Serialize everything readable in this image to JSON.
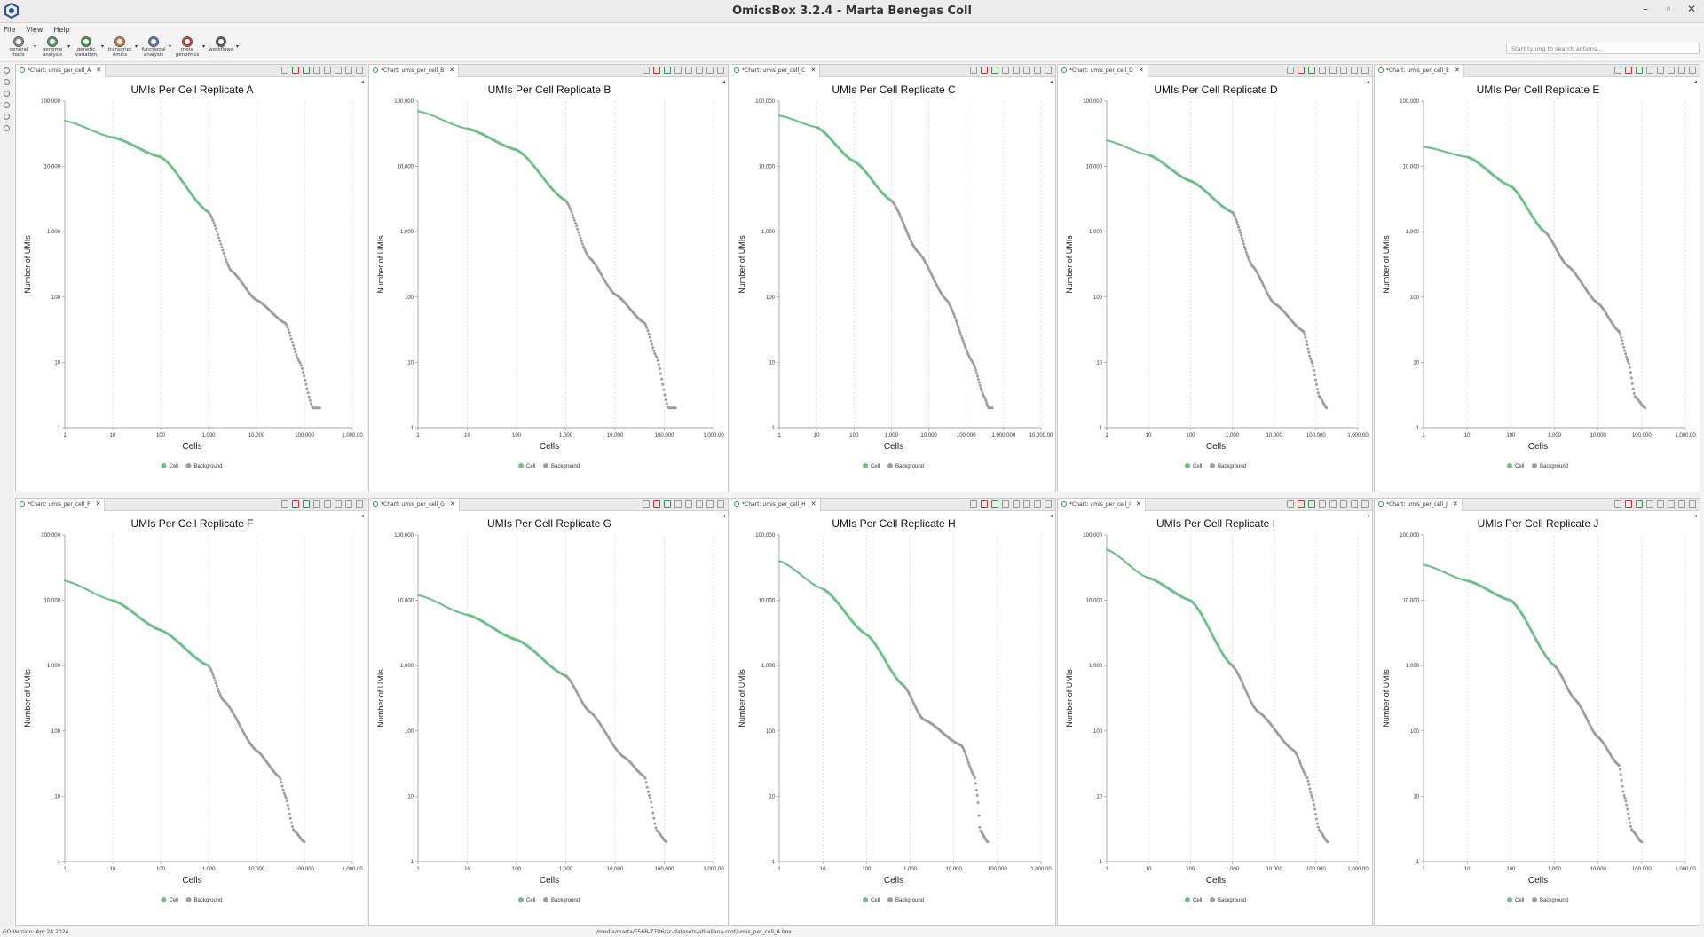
{
  "window": {
    "title": "OmicsBox 3.2.4 - Marta Benegas Coll"
  },
  "menu": [
    "File",
    "View",
    "Help"
  ],
  "toolbar": [
    {
      "label": "general\ntools",
      "color": "#888888"
    },
    {
      "label": "genome\nanalysis",
      "color": "#4a9c62"
    },
    {
      "label": "genetic\nvariation",
      "color": "#3a8f57"
    },
    {
      "label": "transcript\nomics",
      "color": "#e07a2c"
    },
    {
      "label": "functional\nanalysis",
      "color": "#5b6fb3"
    },
    {
      "label": "meta\ngenomics",
      "color": "#c0392b"
    },
    {
      "label": "workflows",
      "color": "#555555"
    }
  ],
  "search_actions": {
    "placeholder": "Start typing to search actions..."
  },
  "colors": {
    "cell": "#6fbf8a",
    "background": "#9e9e9e"
  },
  "charts": [
    {
      "tab": "*Chart: umis_per_cell_A",
      "chart_data": {
        "type": "scatter",
        "title": "UMIs Per Cell Replicate A",
        "xlabel": "Cells",
        "ylabel": "Number of UMIs",
        "log_x": true,
        "log_y": true,
        "xlim": [
          1,
          1000000
        ],
        "ylim": [
          1,
          100000
        ],
        "x_ticks": [
          "1",
          "10",
          "100",
          "1,000",
          "10,000",
          "100,000",
          "1,000,00"
        ],
        "y_ticks": [
          "1",
          "10",
          "100",
          "1,000",
          "10,000",
          "100,000"
        ],
        "grid": "vertical",
        "legend": [
          "Cell",
          "Background"
        ],
        "legend_position": "bottom-center",
        "curve": [
          [
            1,
            50000
          ],
          [
            10,
            28000
          ],
          [
            100,
            14000
          ],
          [
            1000,
            2000
          ],
          [
            3000,
            250
          ],
          [
            10000,
            90
          ],
          [
            40000,
            40
          ],
          [
            80000,
            10
          ],
          [
            150000,
            2
          ],
          [
            210000,
            2
          ]
        ],
        "cell_cutoff": 1000
      }
    },
    {
      "tab": "*Chart: umis_per_cell_B",
      "chart_data": {
        "type": "scatter",
        "title": "UMIs Per Cell Replicate B",
        "xlabel": "Cells",
        "ylabel": "Number of UMIs",
        "log_x": true,
        "log_y": true,
        "xlim": [
          1,
          1000000
        ],
        "ylim": [
          1,
          100000
        ],
        "x_ticks": [
          "1",
          "10",
          "100",
          "1,000",
          "10,000",
          "100,000",
          "1,000,00"
        ],
        "y_ticks": [
          "1",
          "10",
          "100",
          "1,000",
          "10,000",
          "100,000"
        ],
        "grid": "vertical",
        "legend": [
          "Cell",
          "Background"
        ],
        "legend_position": "bottom-center",
        "curve": [
          [
            1,
            70000
          ],
          [
            10,
            38000
          ],
          [
            100,
            18000
          ],
          [
            1000,
            3000
          ],
          [
            3000,
            400
          ],
          [
            10000,
            110
          ],
          [
            40000,
            40
          ],
          [
            70000,
            12
          ],
          [
            120000,
            2
          ],
          [
            170000,
            2
          ]
        ],
        "cell_cutoff": 1000
      }
    },
    {
      "tab": "*Chart: umis_per_cell_C",
      "chart_data": {
        "type": "scatter",
        "title": "UMIs Per Cell Replicate C",
        "xlabel": "Cells",
        "ylabel": "Number of UMIs",
        "log_x": true,
        "log_y": true,
        "xlim": [
          1,
          10000000
        ],
        "ylim": [
          1,
          100000
        ],
        "x_ticks": [
          "1",
          "10",
          "100",
          "1,000",
          "10,000",
          "100,000",
          "1,000,000",
          "10,000,00"
        ],
        "y_ticks": [
          "1",
          "10",
          "100",
          "1,000",
          "10,000",
          "100,000"
        ],
        "grid": "vertical",
        "legend": [
          "Cell",
          "Background"
        ],
        "legend_position": "bottom-center",
        "curve": [
          [
            1,
            60000
          ],
          [
            10,
            40000
          ],
          [
            100,
            12000
          ],
          [
            1000,
            3000
          ],
          [
            5000,
            500
          ],
          [
            30000,
            90
          ],
          [
            150000,
            10
          ],
          [
            300000,
            3
          ],
          [
            400000,
            2
          ],
          [
            500000,
            2
          ]
        ],
        "cell_cutoff": 1000
      }
    },
    {
      "tab": "*Chart: umis_per_cell_D",
      "chart_data": {
        "type": "scatter",
        "title": "UMIs Per Cell Replicate D",
        "xlabel": "Cells",
        "ylabel": "Number of UMIs",
        "log_x": true,
        "log_y": true,
        "xlim": [
          1,
          1000000
        ],
        "ylim": [
          1,
          100000
        ],
        "x_ticks": [
          "1",
          "10",
          "100",
          "1,000",
          "10,000",
          "100,000",
          "1,000,00"
        ],
        "y_ticks": [
          "1",
          "10",
          "100",
          "1,000",
          "10,000",
          "100,000"
        ],
        "grid": "vertical",
        "legend": [
          "Cell",
          "Background"
        ],
        "legend_position": "bottom-center",
        "curve": [
          [
            1,
            25000
          ],
          [
            10,
            15000
          ],
          [
            100,
            6000
          ],
          [
            1000,
            2000
          ],
          [
            3000,
            300
          ],
          [
            10000,
            80
          ],
          [
            50000,
            30
          ],
          [
            80000,
            10
          ],
          [
            120000,
            3
          ],
          [
            180000,
            2
          ]
        ],
        "cell_cutoff": 1000
      }
    },
    {
      "tab": "*Chart: umis_per_cell_E",
      "chart_data": {
        "type": "scatter",
        "title": "UMIs Per Cell Replicate E",
        "xlabel": "Cells",
        "ylabel": "Number of UMIs",
        "log_x": true,
        "log_y": true,
        "xlim": [
          1,
          1000000
        ],
        "ylim": [
          1,
          100000
        ],
        "x_ticks": [
          "1",
          "10",
          "100",
          "1,000",
          "10,000",
          "100,000",
          "1,000,00"
        ],
        "y_ticks": [
          "1",
          "10",
          "100",
          "1,000",
          "10,000",
          "100,000"
        ],
        "grid": "vertical",
        "legend": [
          "Cell",
          "Background"
        ],
        "legend_position": "bottom-center",
        "curve": [
          [
            1,
            20000
          ],
          [
            10,
            14000
          ],
          [
            100,
            5000
          ],
          [
            600,
            1000
          ],
          [
            2000,
            300
          ],
          [
            10000,
            80
          ],
          [
            30000,
            30
          ],
          [
            50000,
            10
          ],
          [
            70000,
            3
          ],
          [
            120000,
            2
          ]
        ],
        "cell_cutoff": 600
      }
    },
    {
      "tab": "*Chart: umis_per_cell_F",
      "chart_data": {
        "type": "scatter",
        "title": "UMIs Per Cell Replicate F",
        "xlabel": "Cells",
        "ylabel": "Number of UMIs",
        "log_x": true,
        "log_y": true,
        "xlim": [
          1,
          1000000
        ],
        "ylim": [
          1,
          100000
        ],
        "x_ticks": [
          "1",
          "10",
          "100",
          "1,000",
          "10,000",
          "100,000",
          "1,000,00"
        ],
        "y_ticks": [
          "1",
          "10",
          "100",
          "1,000",
          "10,000",
          "100,000"
        ],
        "grid": "vertical",
        "legend": [
          "Cell",
          "Background"
        ],
        "legend_position": "bottom-center",
        "curve": [
          [
            1,
            20000
          ],
          [
            10,
            10000
          ],
          [
            100,
            3500
          ],
          [
            1000,
            1000
          ],
          [
            2000,
            300
          ],
          [
            10000,
            50
          ],
          [
            30000,
            20
          ],
          [
            40000,
            10
          ],
          [
            60000,
            3
          ],
          [
            100000,
            2
          ]
        ],
        "cell_cutoff": 1000
      }
    },
    {
      "tab": "*Chart: umis_per_cell_G",
      "chart_data": {
        "type": "scatter",
        "title": "UMIs Per Cell Replicate G",
        "xlabel": "Cells",
        "ylabel": "Number of UMIs",
        "log_x": true,
        "log_y": true,
        "xlim": [
          1,
          1000000
        ],
        "ylim": [
          1,
          100000
        ],
        "x_ticks": [
          "1",
          "10",
          "100",
          "1,000",
          "10,000",
          "100,000",
          "1,000,00"
        ],
        "y_ticks": [
          "1",
          "10",
          "100",
          "1,000",
          "10,000",
          "100,000"
        ],
        "grid": "vertical",
        "legend": [
          "Cell",
          "Background"
        ],
        "legend_position": "bottom-center",
        "curve": [
          [
            1,
            12000
          ],
          [
            10,
            6000
          ],
          [
            100,
            2500
          ],
          [
            1000,
            700
          ],
          [
            3000,
            200
          ],
          [
            15000,
            40
          ],
          [
            40000,
            20
          ],
          [
            50000,
            10
          ],
          [
            70000,
            3
          ],
          [
            110000,
            2
          ]
        ],
        "cell_cutoff": 1000
      }
    },
    {
      "tab": "*Chart: umis_per_cell_H",
      "chart_data": {
        "type": "scatter",
        "title": "UMIs Per Cell Replicate H",
        "xlabel": "Cells",
        "ylabel": "Number of UMIs",
        "log_x": true,
        "log_y": true,
        "xlim": [
          1,
          1000000
        ],
        "ylim": [
          1,
          100000
        ],
        "x_ticks": [
          "1",
          "10",
          "100",
          "1,000",
          "10,000",
          "100,000",
          "1,000,00"
        ],
        "y_ticks": [
          "1",
          "10",
          "100",
          "1,000",
          "10,000",
          "100,000"
        ],
        "grid": "vertical",
        "legend": [
          "Cell",
          "Background"
        ],
        "legend_position": "bottom-center",
        "curve": [
          [
            1,
            40000
          ],
          [
            10,
            15000
          ],
          [
            100,
            3000
          ],
          [
            700,
            500
          ],
          [
            2000,
            150
          ],
          [
            15000,
            60
          ],
          [
            30000,
            20
          ],
          [
            35000,
            10
          ],
          [
            40000,
            3
          ],
          [
            60000,
            2
          ]
        ],
        "cell_cutoff": 700
      }
    },
    {
      "tab": "*Chart: umis_per_cell_I",
      "chart_data": {
        "type": "scatter",
        "title": "UMIs Per Cell Replicate I",
        "xlabel": "Cells",
        "ylabel": "Number of UMIs",
        "log_x": true,
        "log_y": true,
        "xlim": [
          1,
          1000000
        ],
        "ylim": [
          1,
          100000
        ],
        "x_ticks": [
          "1",
          "10",
          "100",
          "1,000",
          "10,000",
          "100,000",
          "1,000,00"
        ],
        "y_ticks": [
          "1",
          "10",
          "100",
          "1,000",
          "10,000",
          "100,000"
        ],
        "grid": "vertical",
        "legend": [
          "Cell",
          "Background"
        ],
        "legend_position": "bottom-center",
        "curve": [
          [
            1,
            60000
          ],
          [
            10,
            22000
          ],
          [
            100,
            10000
          ],
          [
            1000,
            1000
          ],
          [
            4000,
            200
          ],
          [
            30000,
            50
          ],
          [
            60000,
            20
          ],
          [
            80000,
            10
          ],
          [
            120000,
            3
          ],
          [
            190000,
            2
          ]
        ],
        "cell_cutoff": 1000
      }
    },
    {
      "tab": "*Chart: umis_per_cell_J",
      "chart_data": {
        "type": "scatter",
        "title": "UMIs Per Cell Replicate J",
        "xlabel": "Cells",
        "ylabel": "Number of UMIs",
        "log_x": true,
        "log_y": true,
        "xlim": [
          1,
          1000000
        ],
        "ylim": [
          1,
          100000
        ],
        "x_ticks": [
          "1",
          "10",
          "100",
          "1,000",
          "10,000",
          "100,000",
          "1,000,00"
        ],
        "y_ticks": [
          "1",
          "10",
          "100",
          "1,000",
          "10,000",
          "100,000"
        ],
        "grid": "vertical",
        "legend": [
          "Cell",
          "Background"
        ],
        "legend_position": "bottom-center",
        "curve": [
          [
            1,
            35000
          ],
          [
            10,
            20000
          ],
          [
            100,
            10000
          ],
          [
            1000,
            1000
          ],
          [
            3000,
            300
          ],
          [
            10000,
            80
          ],
          [
            30000,
            30
          ],
          [
            40000,
            10
          ],
          [
            60000,
            3
          ],
          [
            100000,
            2
          ]
        ],
        "cell_cutoff": 1000
      }
    }
  ],
  "status": {
    "version": "GO Version: Apr 24 2024",
    "path": "/media/marta/E56B-77D6/sc-datasets/athaliana-root/umis_per_cell_A.box"
  }
}
